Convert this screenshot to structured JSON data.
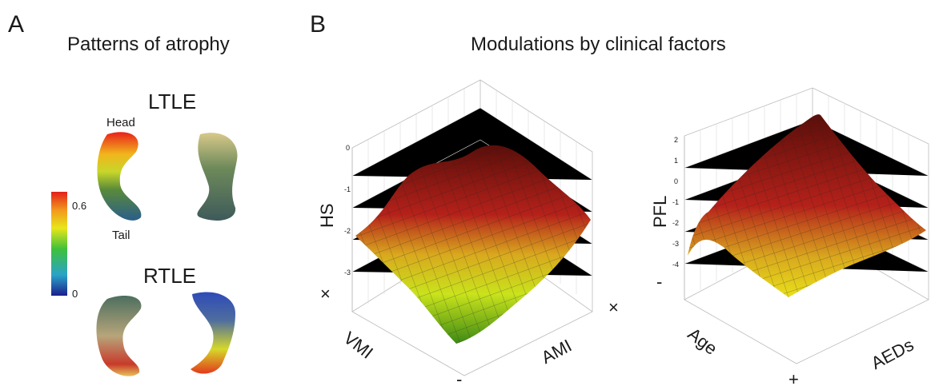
{
  "panel_a": {
    "letter": "A",
    "title": "Patterns of atrophy",
    "ltle_label": "LTLE",
    "rtle_label": "RTLE",
    "head_label": "Head",
    "tail_label": "Tail",
    "colorbar": {
      "max_label": "0.6",
      "min_label": "0",
      "colors": [
        "#1a1f8c",
        "#2aa3c8",
        "#3fc13a",
        "#e8e61a",
        "#f29a1e",
        "#e3201b"
      ]
    }
  },
  "panel_b": {
    "letter": "B",
    "title": "Modulations by clinical factors",
    "plot1": {
      "z_label": "HS",
      "x_label": "VMI",
      "y_label": "AMI",
      "z_end_mark": "×",
      "x_end_plus": "×",
      "x_end_minus": "-",
      "z_ticks": [
        "0",
        "-1",
        "-2",
        "-3"
      ]
    },
    "plot2": {
      "z_label": "PFL",
      "x_label": "Age",
      "y_label": "AEDs",
      "z_end_mark": "-",
      "x_end_plus": "+",
      "z_ticks": [
        "2",
        "1",
        "0",
        "-1",
        "-2",
        "-3",
        "-4"
      ]
    }
  }
}
